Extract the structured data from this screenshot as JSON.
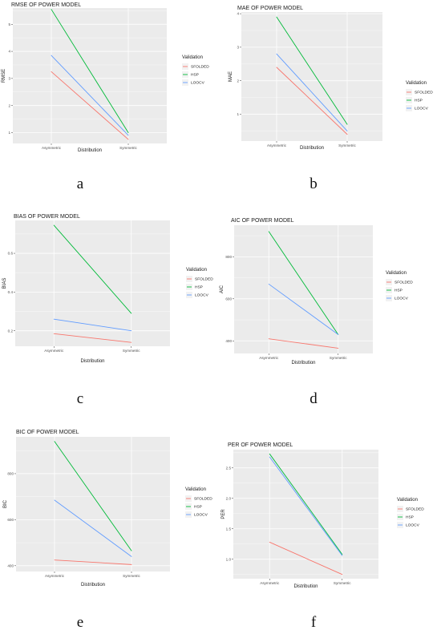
{
  "colors": {
    "SFOLDED": "#f8766d",
    "HSP": "#00ba38",
    "LOOCV": "#619cff",
    "panel": "#ebebeb",
    "grid": "#ffffff"
  },
  "chart_data": [
    {
      "id": "a",
      "caption": "a",
      "type": "line",
      "title": "RMSE OF POWER MODEL",
      "xlabel": "Distribution",
      "ylabel": "RMSE",
      "categories": [
        "Asymmetric",
        "Symmetric"
      ],
      "yticks": [
        "1",
        "2",
        "3",
        "4",
        "5"
      ],
      "ytick_values": [
        1,
        2,
        3,
        4,
        5
      ],
      "ylim": [
        0.6,
        5.6
      ],
      "legend": {
        "title": "Validation",
        "position": "right",
        "entries": [
          "SFOLDED",
          "HSP",
          "LOOCV"
        ]
      },
      "series": [
        {
          "name": "SFOLDED",
          "values": [
            3.25,
            0.75
          ]
        },
        {
          "name": "HSP",
          "values": [
            5.55,
            1.0
          ]
        },
        {
          "name": "LOOCV",
          "values": [
            3.85,
            0.9
          ]
        }
      ]
    },
    {
      "id": "b",
      "caption": "b",
      "type": "line",
      "title": "MAE OF POWER MODEL",
      "xlabel": "Distribution",
      "ylabel": "MAE",
      "categories": [
        "Asymmetric",
        "Symmetric"
      ],
      "yticks": [
        "1",
        "2",
        "3",
        "4"
      ],
      "ytick_values": [
        1,
        2,
        3,
        4
      ],
      "ylim": [
        0.2,
        4.05
      ],
      "legend": {
        "title": "Validation",
        "position": "right",
        "entries": [
          "SFOLDED",
          "HSP",
          "LOOCV"
        ]
      },
      "series": [
        {
          "name": "SFOLDED",
          "values": [
            2.4,
            0.4
          ]
        },
        {
          "name": "HSP",
          "values": [
            3.9,
            0.7
          ]
        },
        {
          "name": "LOOCV",
          "values": [
            2.8,
            0.5
          ]
        }
      ]
    },
    {
      "id": "c",
      "caption": "c",
      "type": "line",
      "title": "BIAS OF POWER MODEL",
      "xlabel": "Distribution",
      "ylabel": "BIAS",
      "categories": [
        "Asymmetric",
        "Symmetric"
      ],
      "yticks": [
        "0.2",
        "0.4",
        "0.6"
      ],
      "ytick_values": [
        0.2,
        0.4,
        0.6
      ],
      "ylim": [
        0.12,
        0.77
      ],
      "legend": {
        "title": "Validation",
        "position": "right",
        "entries": [
          "SFOLDED",
          "HSP",
          "LOOCV"
        ]
      },
      "series": [
        {
          "name": "SFOLDED",
          "values": [
            0.185,
            0.14
          ]
        },
        {
          "name": "HSP",
          "values": [
            0.745,
            0.29
          ]
        },
        {
          "name": "LOOCV",
          "values": [
            0.26,
            0.2
          ]
        }
      ]
    },
    {
      "id": "d",
      "caption": "d",
      "type": "line",
      "title": "AIC OF POWER MODEL",
      "xlabel": "Distribution",
      "ylabel": "AIC",
      "categories": [
        "Asymmetric",
        "Symmetric"
      ],
      "yticks": [
        "400",
        "600",
        "800"
      ],
      "ytick_values": [
        400,
        600,
        800
      ],
      "ylim": [
        340,
        950
      ],
      "legend": {
        "title": "Validation",
        "position": "right",
        "entries": [
          "SFOLDED",
          "HSP",
          "LOOCV"
        ]
      },
      "series": [
        {
          "name": "SFOLDED",
          "values": [
            410,
            365
          ]
        },
        {
          "name": "HSP",
          "values": [
            920,
            430
          ]
        },
        {
          "name": "LOOCV",
          "values": [
            670,
            430
          ]
        }
      ]
    },
    {
      "id": "e",
      "caption": "e",
      "type": "line",
      "title": "BIC OF POWER MODEL",
      "xlabel": "Distribution",
      "ylabel": "BIC",
      "categories": [
        "Asymmetric",
        "Symmetric"
      ],
      "yticks": [
        "400",
        "600",
        "800"
      ],
      "ytick_values": [
        400,
        600,
        800
      ],
      "ylim": [
        375,
        960
      ],
      "legend": {
        "title": "Validation",
        "position": "right",
        "entries": [
          "SFOLDED",
          "HSP",
          "LOOCV"
        ]
      },
      "series": [
        {
          "name": "SFOLDED",
          "values": [
            425,
            405
          ]
        },
        {
          "name": "HSP",
          "values": [
            940,
            465
          ]
        },
        {
          "name": "LOOCV",
          "values": [
            685,
            440
          ]
        }
      ]
    },
    {
      "id": "f",
      "caption": "f",
      "type": "line",
      "title": "PER OF POWER MODEL",
      "xlabel": "Distribution",
      "ylabel": "PER",
      "categories": [
        "Asymmetric",
        "Symmetric"
      ],
      "yticks": [
        "1.0",
        "1.5",
        "2.0",
        "2.5"
      ],
      "ytick_values": [
        1.0,
        1.5,
        2.0,
        2.5
      ],
      "ylim": [
        0.68,
        2.8
      ],
      "legend": {
        "title": "Validation",
        "position": "right",
        "entries": [
          "SFOLDED",
          "HSP",
          "LOOCV"
        ]
      },
      "series": [
        {
          "name": "SFOLDED",
          "values": [
            1.28,
            0.75
          ]
        },
        {
          "name": "HSP",
          "values": [
            2.73,
            1.08
          ]
        },
        {
          "name": "LOOCV",
          "values": [
            2.68,
            1.06
          ]
        }
      ]
    }
  ]
}
